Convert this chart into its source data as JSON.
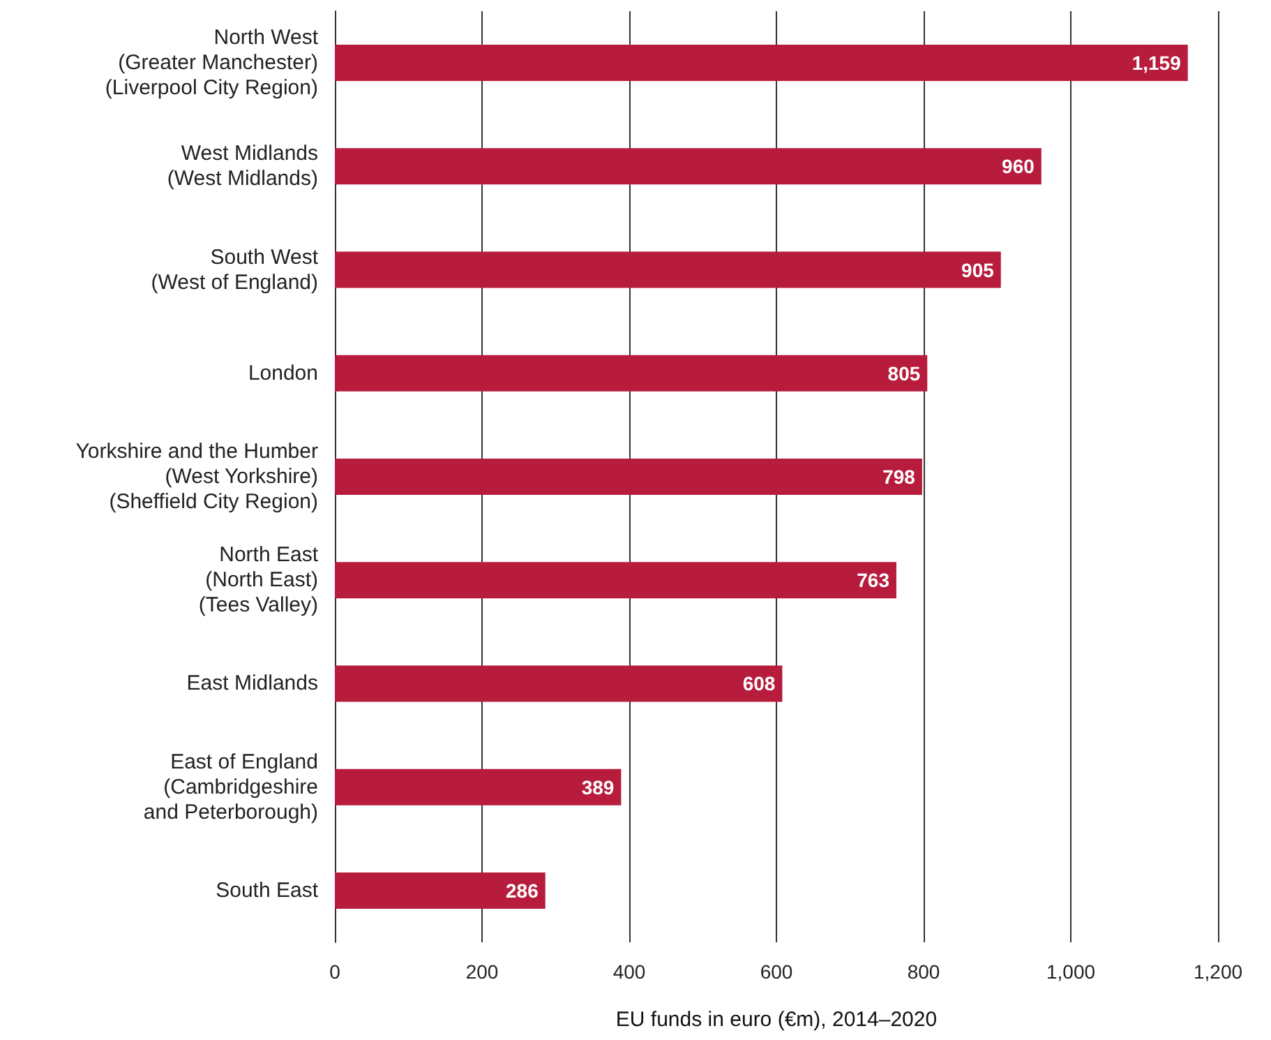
{
  "chart_data": {
    "type": "bar",
    "orientation": "horizontal",
    "categories": [
      "North West\n(Greater Manchester)\n(Liverpool City Region)",
      "West Midlands\n(West Midlands)",
      "South West\n(West of England)",
      "London",
      "Yorkshire and the Humber\n(West Yorkshire)\n(Sheffield City Region)",
      "North East\n(North East)\n(Tees Valley)",
      "East Midlands",
      "East of England\n(Cambridgeshire\nand Peterborough)",
      "South East"
    ],
    "values": [
      1159,
      960,
      905,
      805,
      798,
      763,
      608,
      389,
      286
    ],
    "value_labels": [
      "1,159",
      "960",
      "905",
      "805",
      "798",
      "763",
      "608",
      "389",
      "286"
    ],
    "color": "#b71c3c",
    "xlabel": "EU funds in euro (€m), 2014–2020",
    "xlim": [
      0,
      1200
    ],
    "xticks": [
      0,
      200,
      400,
      600,
      800,
      {
        "value": 1000,
        "label": "1,000"
      },
      {
        "value": 1200,
        "label": "1,200"
      }
    ],
    "grid": "x"
  }
}
